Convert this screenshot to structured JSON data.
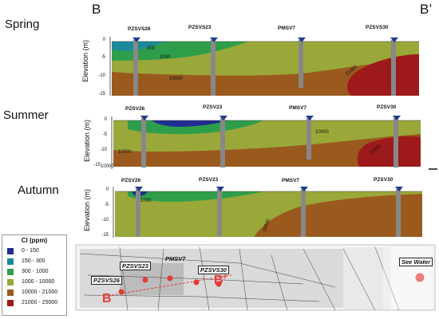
{
  "corners": {
    "left": "B",
    "right": "B’"
  },
  "y_axis_label": "Elevation (m)",
  "y_ticks": [
    "0",
    "-5",
    "-10",
    "-15"
  ],
  "panels": [
    {
      "season": "Spring",
      "wells": [
        "PZSVS26",
        "PZSVS23",
        "PMSV7",
        "PZSVS30"
      ],
      "contours": [
        "300",
        "1000",
        "10000",
        "21000"
      ]
    },
    {
      "season": "Summer",
      "wells": [
        "PZSV26",
        "PZSV23",
        "PMSV7",
        "PZSV30"
      ],
      "contours": [
        "10000",
        "10000",
        "21000",
        "10000"
      ]
    },
    {
      "season": "Autumn",
      "wells": [
        "PZSV26",
        "PZSV23",
        "PMSV7",
        "PZSV30"
      ],
      "contours": [
        "1000",
        "10000"
      ]
    }
  ],
  "summer_extra_tick": "-15",
  "legend": {
    "title": "Cl (ppm)",
    "items": [
      {
        "label": "0 - 150",
        "color": "#1f2d8f"
      },
      {
        "label": "150 - 300",
        "color": "#1b8a9a"
      },
      {
        "label": "300 - 1000",
        "color": "#2e9e4a"
      },
      {
        "label": "1000 - 10000",
        "color": "#9aa83a"
      },
      {
        "label": "10000 - 21000",
        "color": "#9a5a1e"
      },
      {
        "label": "21000 - 25000",
        "color": "#9e1a1a"
      }
    ]
  },
  "map": {
    "labels": [
      "PZSVS23",
      "PMSV7",
      "PZSVS30",
      "PZSVS26",
      "See Water"
    ],
    "letters": [
      "B",
      "B’"
    ]
  }
}
